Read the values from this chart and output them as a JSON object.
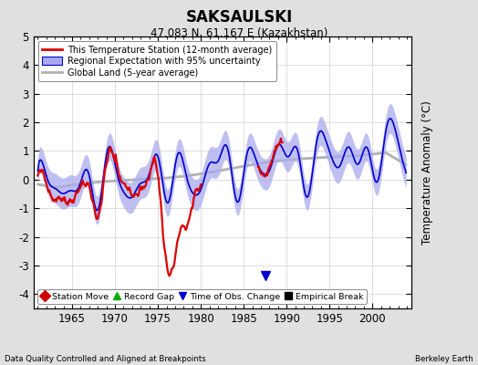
{
  "title": "SAKSAULSKI",
  "subtitle": "47.083 N, 61.167 E (Kazakhstan)",
  "ylabel": "Temperature Anomaly (°C)",
  "footer_left": "Data Quality Controlled and Aligned at Breakpoints",
  "footer_right": "Berkeley Earth",
  "xlim": [
    1960.5,
    2004.5
  ],
  "ylim": [
    -4.5,
    5.0
  ],
  "yticks": [
    -4,
    -3,
    -2,
    -1,
    0,
    1,
    2,
    3,
    4,
    5
  ],
  "xticks": [
    1965,
    1970,
    1975,
    1980,
    1985,
    1990,
    1995,
    2000
  ],
  "background_color": "#e0e0e0",
  "plot_bg_color": "#ffffff",
  "station_color": "#dd0000",
  "regional_color": "#0000cc",
  "regional_fill_color": "#aaaaee",
  "global_color": "#b0b0b0",
  "legend_labels": [
    "This Temperature Station (12-month average)",
    "Regional Expectation with 95% uncertainty",
    "Global Land (5-year average)"
  ],
  "marker_labels": [
    "Station Move",
    "Record Gap",
    "Time of Obs. Change",
    "Empirical Break"
  ],
  "marker_colors": [
    "#cc0000",
    "#00aa00",
    "#0000cc",
    "#000000"
  ],
  "marker_shapes": [
    "D",
    "^",
    "v",
    "s"
  ],
  "obs_change_x": 1987.5,
  "obs_change_y": -3.35,
  "seed": 99
}
